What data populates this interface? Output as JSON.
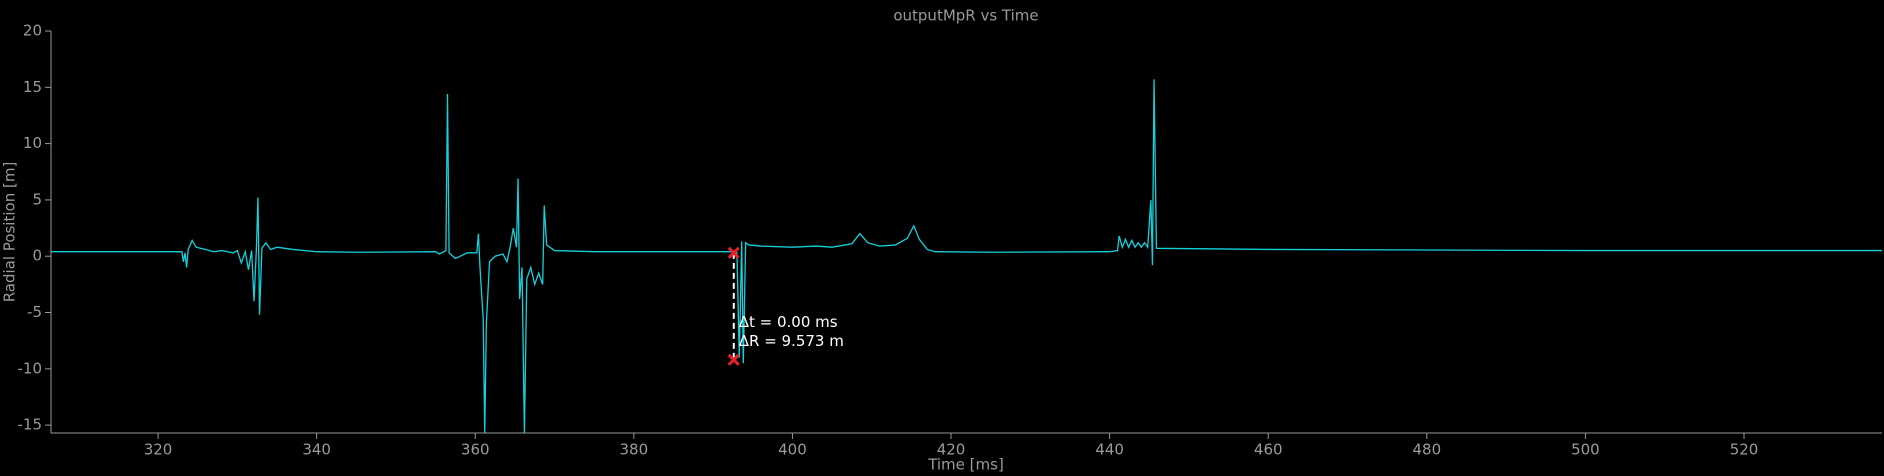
{
  "chart_data": {
    "type": "line",
    "title": "outputMpR vs Time",
    "x_label": "Time [ms]",
    "y_label": "Radial Position [m]",
    "xlim": [
      306.5,
      537.4
    ],
    "ylim": [
      -15.7,
      20
    ],
    "xticks": [
      320,
      340,
      360,
      380,
      400,
      420,
      440,
      460,
      480,
      500,
      520
    ],
    "yticks": [
      20,
      15,
      10,
      5,
      0,
      -5,
      -10,
      -15
    ],
    "x": [
      306.5,
      323,
      323.2,
      323.4,
      323.6,
      323.8,
      324.3,
      324.8,
      326,
      327,
      328,
      329.5,
      330,
      330.5,
      331,
      331.4,
      331.8,
      332.1,
      332.4,
      332.6,
      332.8,
      333.1,
      333.6,
      334.2,
      335,
      337,
      340,
      345,
      355,
      355.5,
      356.3,
      356.5,
      356.7,
      357.5,
      359,
      360.2,
      360.4,
      360.6,
      361,
      361.2,
      361.4,
      361.8,
      362.5,
      363.5,
      364,
      364.4,
      364.8,
      365.2,
      365.4,
      365.6,
      365.9,
      366.2,
      366.5,
      367,
      367.5,
      368,
      368.5,
      368.7,
      369,
      370,
      375,
      390,
      392.6,
      393,
      393.3,
      393.6,
      393.8,
      394.1,
      394.5,
      396,
      400,
      403,
      405,
      407.5,
      408.5,
      409.5,
      411,
      413,
      414.5,
      415.3,
      416,
      417,
      418,
      425,
      440,
      441,
      441.2,
      441.6,
      442,
      442.4,
      442.8,
      443.2,
      443.6,
      444,
      444.4,
      444.8,
      445.2,
      445.4,
      445.6,
      445.9,
      460,
      500,
      537.4
    ],
    "series": [
      {
        "name": "outputMpR",
        "color": "#14d2dc",
        "values": [
          0.4,
          0.4,
          -0.5,
          0.3,
          -1,
          0.6,
          1.4,
          0.8,
          0.6,
          0.4,
          0.5,
          0.3,
          0.5,
          -0.6,
          0.4,
          -1.2,
          0.5,
          -4,
          0.6,
          5.2,
          -5.2,
          0.7,
          1.2,
          0.6,
          0.8,
          0.6,
          0.4,
          0.35,
          0.4,
          0.2,
          0.5,
          14.4,
          0.3,
          -0.2,
          0.3,
          0.3,
          2,
          -1,
          -5.5,
          -15.7,
          -6,
          -0.5,
          0,
          0.2,
          -0.5,
          0.8,
          2.5,
          0.8,
          6.9,
          -3.8,
          -1,
          -15.7,
          -2,
          -1,
          -2.5,
          -1.5,
          -2.5,
          4.5,
          1,
          0.5,
          0.4,
          0.4,
          0.4,
          0.3,
          -9,
          1.3,
          -9.5,
          1.2,
          1,
          0.9,
          0.8,
          0.9,
          0.8,
          1.1,
          2,
          1.2,
          0.9,
          1,
          1.6,
          2.7,
          1.5,
          0.6,
          0.4,
          0.35,
          0.4,
          0.5,
          1.8,
          0.8,
          1.5,
          0.8,
          1.4,
          0.8,
          1.2,
          0.8,
          1.2,
          0.8,
          5,
          -0.8,
          15.7,
          0.7,
          0.6,
          0.5,
          0.5
        ]
      }
    ],
    "cursors": [
      {
        "x": 392.6,
        "y": 0.3
      },
      {
        "x": 392.6,
        "y": -9.2
      }
    ],
    "annotations": [
      "Δt = 0.00 ms",
      "ΔR = 9.573 m"
    ]
  }
}
